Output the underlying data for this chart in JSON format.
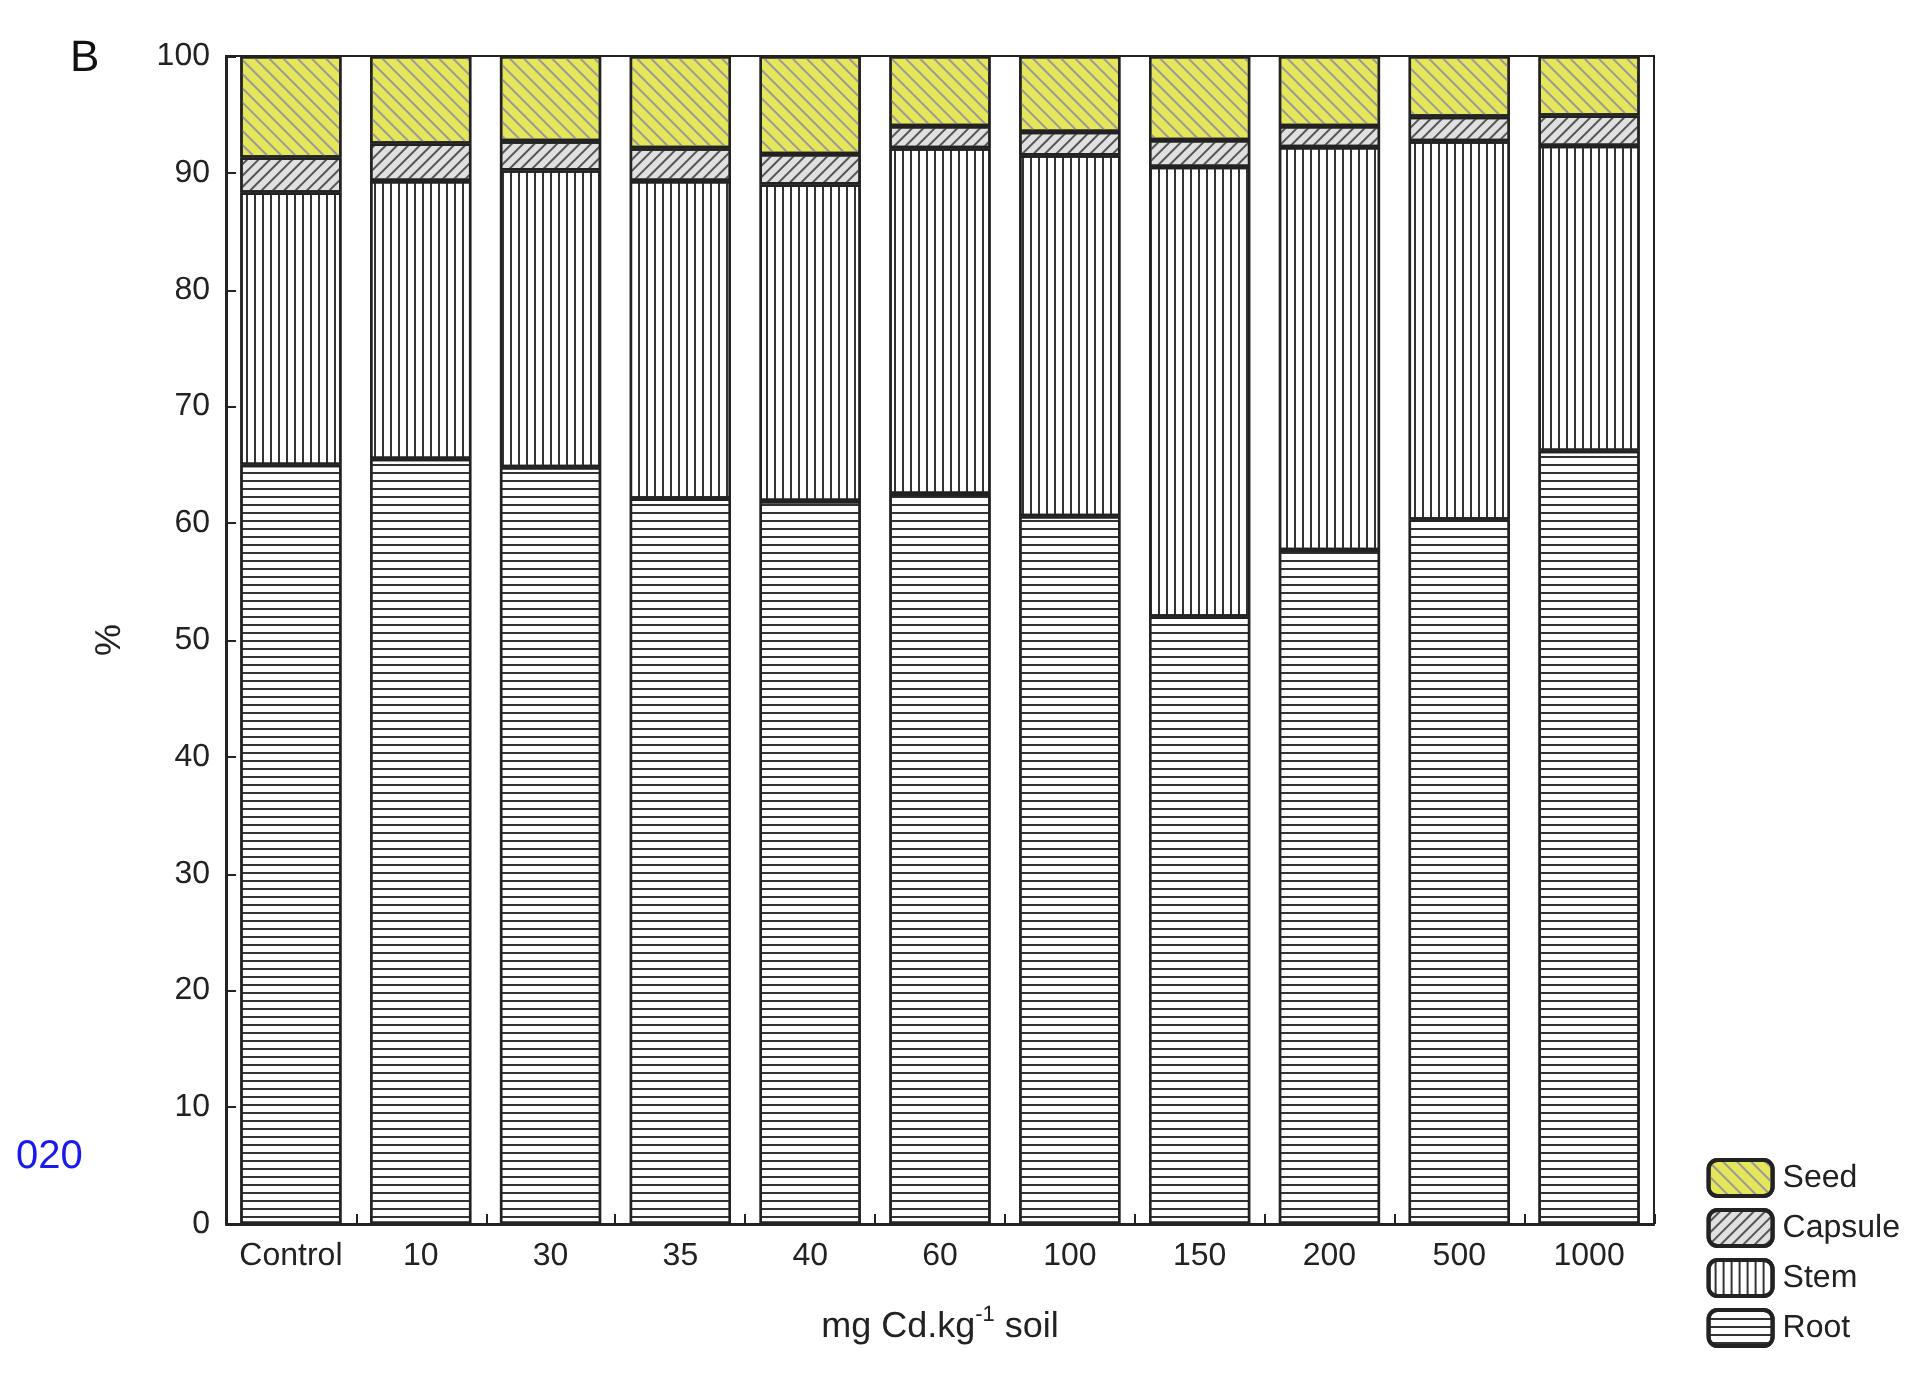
{
  "chart_data": {
    "type": "bar",
    "title": "B",
    "xlabel": "mg Cd.kg$^{-1}$ soil",
    "ylabel": "%",
    "categories": [
      "Control",
      "10",
      "30",
      "35",
      "40",
      "60",
      "100",
      "150",
      "200",
      "500",
      "1000"
    ],
    "stacked": true,
    "series": [
      {
        "name": "Root",
        "color": "#ffffff",
        "values": [
          65.0,
          65.5,
          64.8,
          62.1,
          61.9,
          62.5,
          60.6,
          52.0,
          57.7,
          60.3,
          66.2
        ]
      },
      {
        "name": "Stem",
        "color": "#ffffff",
        "values": [
          23.3,
          23.8,
          25.4,
          27.2,
          27.1,
          29.6,
          30.9,
          38.5,
          34.5,
          32.4,
          26.1
        ]
      },
      {
        "name": "Capsule",
        "color": "#e0e0e0",
        "values": [
          3.0,
          3.2,
          2.5,
          2.8,
          2.6,
          1.9,
          2.0,
          2.3,
          1.8,
          2.1,
          2.6
        ]
      },
      {
        "name": "Seed",
        "color": "#e6e65a",
        "values": [
          8.7,
          7.5,
          7.3,
          7.9,
          8.4,
          6.0,
          6.5,
          7.2,
          6.0,
          5.2,
          5.1
        ]
      }
    ],
    "ylim": [
      0,
      100
    ],
    "yticks": [
      0,
      10,
      20,
      30,
      40,
      50,
      60,
      70,
      80,
      90,
      100
    ],
    "grid": false,
    "legend": "bottom right",
    "annotations": [
      "020"
    ]
  }
}
